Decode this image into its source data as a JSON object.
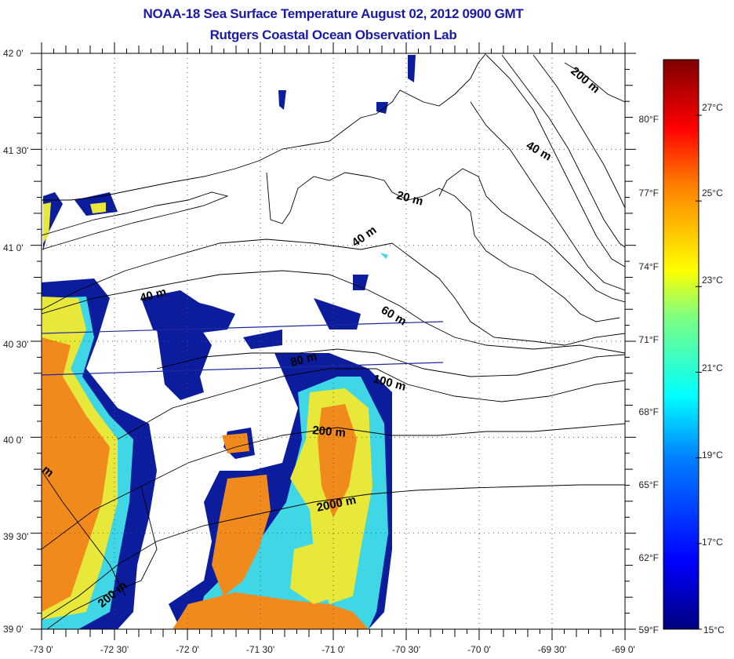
{
  "header": {
    "title": "NOAA-18 Sea Surface Temperature August 02, 2012 0900 GMT",
    "subtitle": "Rutgers Coastal Ocean Observation Lab"
  },
  "map": {
    "lon_range": [
      -73,
      -69
    ],
    "lat_range": [
      39,
      42
    ],
    "lon_labels": [
      "-73 0'",
      "-72 30'",
      "-72 0'",
      "-71 30'",
      "-71 0'",
      "-70 30'",
      "-70 0'",
      "-69 30'",
      "-69 0'"
    ],
    "lat_labels": [
      "42 0'",
      "41 30'",
      "41 0'",
      "40 30'",
      "40 0'",
      "39 30'",
      "39 0'"
    ],
    "contour_labels": [
      "200 m",
      "40 m",
      "20 m",
      "40 m",
      "40 m",
      "60 m",
      "80 m",
      "100 m",
      "200 m",
      "2000 m",
      "200 m",
      "m"
    ]
  },
  "colorbar": {
    "fahrenheit_labels": [
      "80°F",
      "77°F",
      "74°F",
      "71°F",
      "68°F",
      "65°F",
      "62°F",
      "59°F"
    ],
    "celsius_labels": [
      "27°C",
      "25°C",
      "23°C",
      "21°C",
      "19°C",
      "17°C",
      "15°C"
    ],
    "range_c": [
      15,
      28.3
    ],
    "colors": [
      "#00007f",
      "#0000ff",
      "#007fff",
      "#00ffff",
      "#7fff7f",
      "#ffff00",
      "#ff7f00",
      "#ff0000",
      "#7f0000"
    ]
  },
  "colors": {
    "title": "#1a1aa6",
    "cold": "#0a1a9a",
    "warm": "#f28a1e"
  }
}
